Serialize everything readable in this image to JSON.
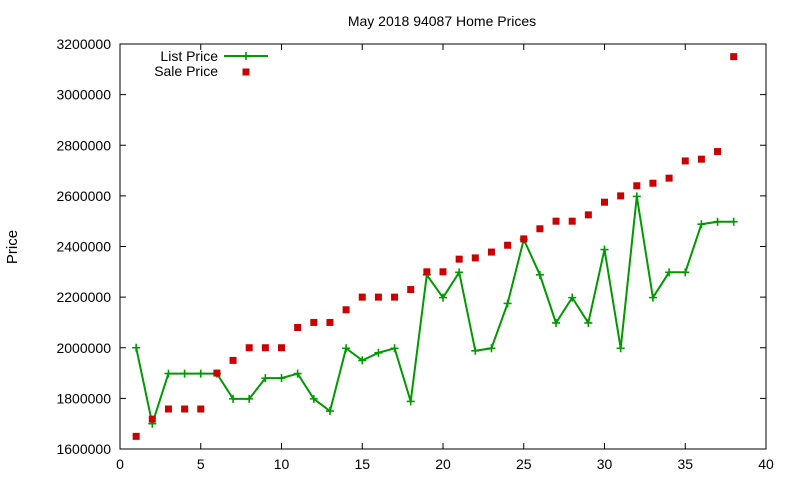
{
  "chart_data": {
    "type": "line",
    "title": "May 2018 94087 Home Prices",
    "xlabel": "",
    "ylabel": "Price",
    "xlim": [
      0,
      40
    ],
    "ylim": [
      1600000,
      3200000
    ],
    "xticks": [
      0,
      5,
      10,
      15,
      20,
      25,
      30,
      35,
      40
    ],
    "yticks": [
      1600000,
      1800000,
      2000000,
      2200000,
      2400000,
      2600000,
      2800000,
      3000000,
      3200000
    ],
    "grid": false,
    "legend": "top-left",
    "series": [
      {
        "name": "List Price",
        "style": "line-plus",
        "color": "#009900",
        "x": [
          1,
          2,
          3,
          4,
          5,
          6,
          7,
          8,
          9,
          10,
          11,
          12,
          13,
          14,
          15,
          16,
          17,
          18,
          19,
          20,
          21,
          22,
          23,
          24,
          25,
          26,
          27,
          28,
          29,
          30,
          31,
          32,
          33,
          34,
          35,
          36,
          37,
          38
        ],
        "values": [
          2000000,
          1700000,
          1898000,
          1898000,
          1898000,
          1898000,
          1798000,
          1798000,
          1880000,
          1880000,
          1898000,
          1798000,
          1750000,
          1998000,
          1950000,
          1980000,
          1998000,
          1788000,
          2288000,
          2198000,
          2298000,
          1988000,
          1998000,
          2175000,
          2428000,
          2288000,
          2098000,
          2198000,
          2098000,
          2388000,
          1998000,
          2598000,
          2198000,
          2298000,
          2298000,
          2488000,
          2498000,
          2498000
        ]
      },
      {
        "name": "Sale Price",
        "style": "square-points",
        "color": "#cc0000",
        "x": [
          1,
          2,
          3,
          4,
          5,
          6,
          7,
          8,
          9,
          10,
          11,
          12,
          13,
          14,
          15,
          16,
          17,
          18,
          19,
          20,
          21,
          22,
          23,
          24,
          25,
          26,
          27,
          28,
          29,
          30,
          31,
          32,
          33,
          34,
          35,
          36,
          37,
          38
        ],
        "values": [
          1650000,
          1718000,
          1758000,
          1758000,
          1758000,
          1900000,
          1950000,
          2000000,
          2000000,
          2000000,
          2080000,
          2100000,
          2100000,
          2150000,
          2200000,
          2200000,
          2200000,
          2230000,
          2300000,
          2300000,
          2350000,
          2355000,
          2378000,
          2405000,
          2430000,
          2470000,
          2500000,
          2500000,
          2525000,
          2575000,
          2600000,
          2640000,
          2650000,
          2670000,
          2738000,
          2745000,
          2775000,
          3150000
        ]
      }
    ]
  }
}
